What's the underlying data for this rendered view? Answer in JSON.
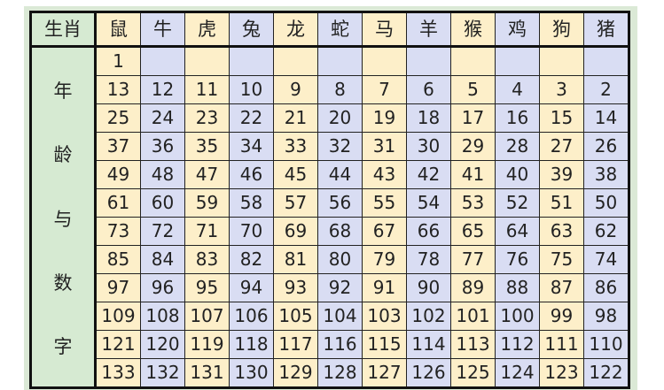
{
  "corner_label": "生肖",
  "side_label": [
    "年",
    "龄",
    "与",
    "数",
    "字"
  ],
  "zodiac": [
    "鼠",
    "牛",
    "虎",
    "兔",
    "龙",
    "蛇",
    "马",
    "羊",
    "猴",
    "鸡",
    "狗",
    "猪"
  ],
  "rows": [
    [
      "1",
      "",
      "",
      "",
      "",
      "",
      "",
      "",
      "",
      "",
      "",
      ""
    ],
    [
      "13",
      "12",
      "11",
      "10",
      "9",
      "8",
      "7",
      "6",
      "5",
      "4",
      "3",
      "2"
    ],
    [
      "25",
      "24",
      "23",
      "22",
      "21",
      "20",
      "19",
      "18",
      "17",
      "16",
      "15",
      "14"
    ],
    [
      "37",
      "36",
      "35",
      "34",
      "33",
      "32",
      "31",
      "30",
      "29",
      "28",
      "27",
      "26"
    ],
    [
      "49",
      "48",
      "47",
      "46",
      "45",
      "44",
      "43",
      "42",
      "41",
      "40",
      "39",
      "38"
    ],
    [
      "61",
      "60",
      "59",
      "58",
      "57",
      "56",
      "55",
      "54",
      "53",
      "52",
      "51",
      "50"
    ],
    [
      "73",
      "72",
      "71",
      "70",
      "69",
      "68",
      "67",
      "66",
      "65",
      "64",
      "63",
      "62"
    ],
    [
      "85",
      "84",
      "83",
      "82",
      "81",
      "80",
      "79",
      "78",
      "77",
      "76",
      "75",
      "74"
    ],
    [
      "97",
      "96",
      "95",
      "94",
      "93",
      "92",
      "91",
      "90",
      "89",
      "88",
      "87",
      "86"
    ],
    [
      "109",
      "108",
      "107",
      "106",
      "105",
      "104",
      "103",
      "102",
      "101",
      "100",
      "99",
      "98"
    ],
    [
      "121",
      "120",
      "119",
      "118",
      "117",
      "116",
      "115",
      "114",
      "113",
      "112",
      "111",
      "110"
    ],
    [
      "133",
      "132",
      "131",
      "130",
      "129",
      "128",
      "127",
      "126",
      "125",
      "124",
      "123",
      "122"
    ]
  ],
  "colors": {
    "odd_column": "#fdefc9",
    "even_column": "#d9ddf3",
    "label_column": "#d6ead2"
  }
}
